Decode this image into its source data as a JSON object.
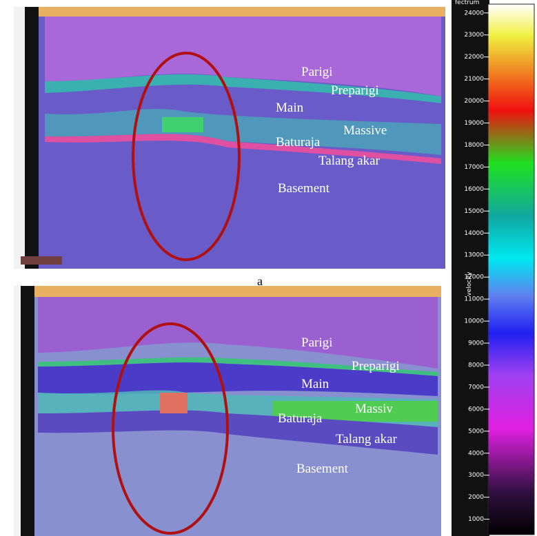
{
  "panels": [
    {
      "caption": "a",
      "labels": [
        "Parigi",
        "Preparigi",
        "Main",
        "Massive",
        "Baturaja",
        "Talang akar",
        "Basement"
      ]
    },
    {
      "labels": [
        "Parigi",
        "Preparigi",
        "Main",
        "Massiv",
        "Baturaja",
        "Talang akar",
        "Basement"
      ]
    }
  ],
  "colorbar": {
    "title": "fectrum",
    "label": "velocity",
    "lim": [
      300,
      24400
    ],
    "ticks": [
      1000,
      2000,
      3000,
      4000,
      5000,
      6000,
      7000,
      8000,
      9000,
      10000,
      11000,
      12000,
      13000,
      14000,
      15000,
      16000,
      17000,
      18000,
      19000,
      20000,
      21000,
      22000,
      23000,
      24000
    ]
  }
}
